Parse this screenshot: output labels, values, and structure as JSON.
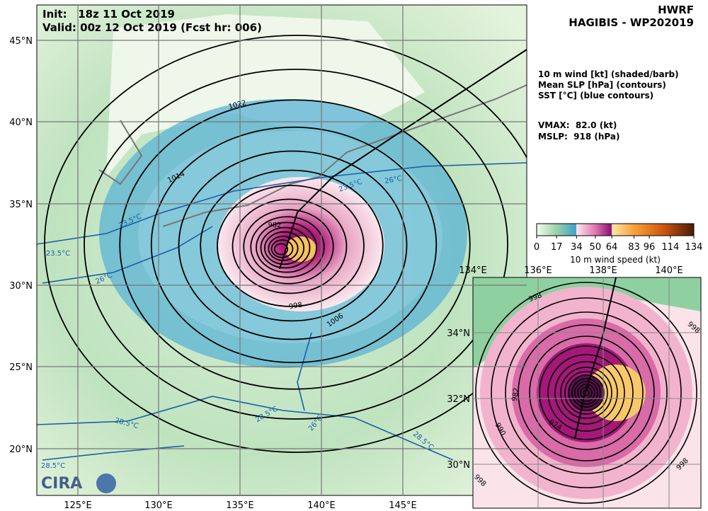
{
  "header": {
    "init": "Init:   18z 11 Oct 2019",
    "valid": "Valid: 00z 12 Oct 2019 (Fcst hr: 006)",
    "model": "HWRF",
    "storm": "HAGIBIS - WP202019"
  },
  "fields": [
    "10 m wind [kt] (shaded/barb)",
    "Mean SLP [hPa] (contours)",
    "SST [°C] (blue contours)"
  ],
  "stats": [
    "VMAX:  82.0 (kt)",
    "MSLP:  918 (hPa)"
  ],
  "colorbar": {
    "ticks": [
      "0",
      "17",
      "34",
      "50",
      "64",
      "83",
      "96",
      "114",
      "134"
    ],
    "label": "10 m wind speed (kt)"
  },
  "main_map": {
    "lon_labels": [
      "125°E",
      "130°E",
      "135°E",
      "140°E",
      "145°E"
    ],
    "lat_labels": [
      "45°N",
      "40°N",
      "35°N",
      "30°N",
      "25°N",
      "20°N"
    ],
    "contour_labels": [
      "1022",
      "1014",
      "982",
      "998",
      "1006",
      "23.5°C",
      "23.5°C",
      "26°C",
      "26°C",
      "23.5°C",
      "28.5°C",
      "28.5°C",
      "26°C",
      "28.5°C",
      "28.5°C"
    ]
  },
  "inset_map": {
    "lon_labels": [
      "134°E",
      "136°E",
      "138°E",
      "140°E"
    ],
    "lat_labels": [
      "34°N",
      "32°N",
      "30°N"
    ],
    "contour_labels": [
      "998",
      "998",
      "982",
      "974",
      "990",
      "998",
      "998"
    ]
  }
}
